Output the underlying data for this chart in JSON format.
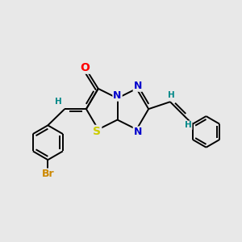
{
  "background_color": "#e8e8e8",
  "bond_color": "#000000",
  "atom_colors": {
    "O": "#ff0000",
    "N": "#0000cc",
    "S": "#cccc00",
    "Br": "#cc8800",
    "C": "#000000",
    "H": "#008888"
  },
  "line_width": 1.4,
  "font_size": 8.5,
  "figsize": [
    3.0,
    3.0
  ],
  "dpi": 100
}
